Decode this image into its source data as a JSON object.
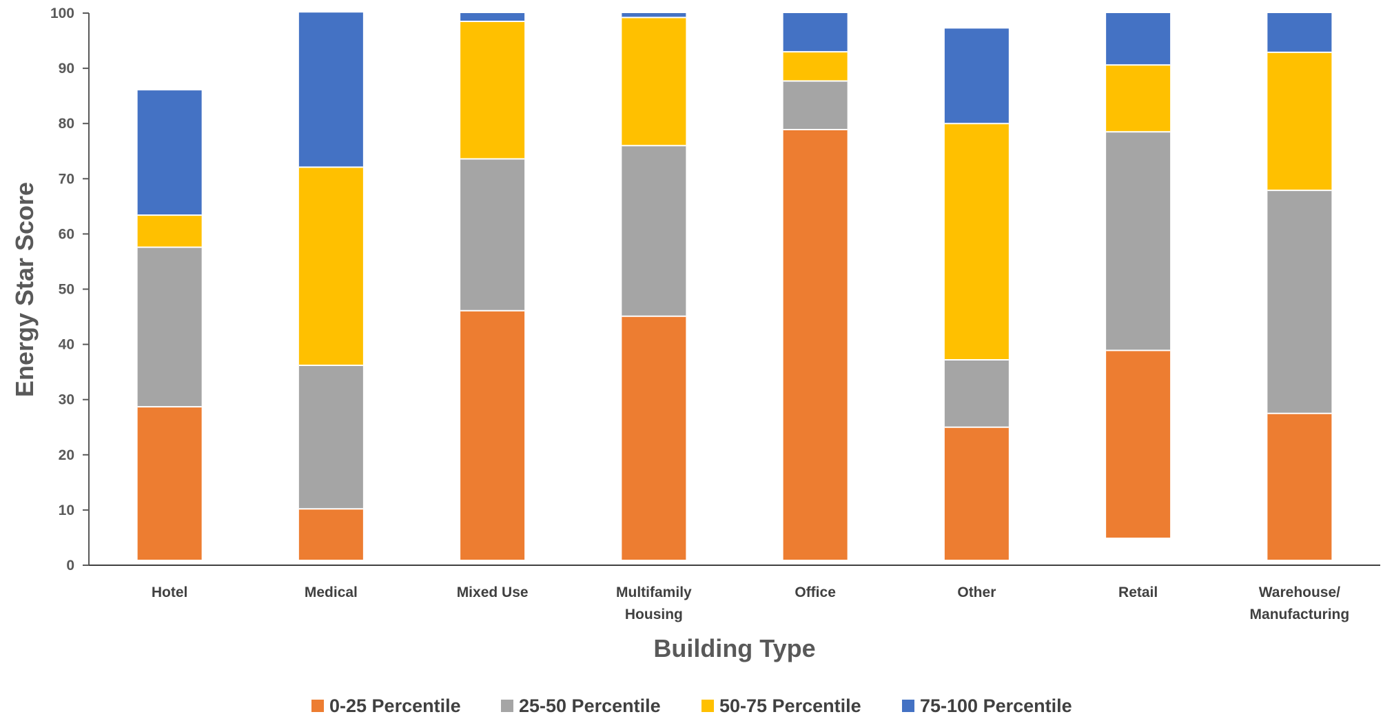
{
  "chart_data": {
    "type": "bar",
    "stacked": true,
    "floating": true,
    "title": "",
    "xlabel": "Building Type",
    "ylabel": "Energy Star Score",
    "ylim": [
      0,
      100
    ],
    "yticks": [
      "0",
      "10",
      "20",
      "30",
      "40",
      "50",
      "60",
      "70",
      "80",
      "90",
      "100"
    ],
    "categories": [
      [
        "Hotel"
      ],
      [
        "Medical"
      ],
      [
        "Mixed Use"
      ],
      [
        "Multifamily",
        "Housing"
      ],
      [
        "Office"
      ],
      [
        "Other"
      ],
      [
        "Retail"
      ],
      [
        "Warehouse/",
        "Manufacturing"
      ]
    ],
    "base": [
      1,
      1,
      1,
      1,
      1,
      1,
      5,
      1
    ],
    "series": [
      {
        "name": "0-25 Percentile",
        "color": "#ED7D31",
        "values": [
          27.7,
          9.2,
          45.1,
          44.1,
          77.9,
          24.0,
          33.9,
          26.5
        ]
      },
      {
        "name": "25-50 Percentile",
        "color": "#A5A5A5",
        "values": [
          28.9,
          26.0,
          27.5,
          30.9,
          8.8,
          12.2,
          39.6,
          40.4
        ]
      },
      {
        "name": "50-75 Percentile",
        "color": "#FFC000",
        "values": [
          5.8,
          35.9,
          24.9,
          23.2,
          5.3,
          42.8,
          12.1,
          25.0
        ]
      },
      {
        "name": "75-100 Percentile",
        "color": "#4472C4",
        "values": [
          22.6,
          28.0,
          1.5,
          0.8,
          7.0,
          17.2,
          9.4,
          7.1
        ]
      }
    ],
    "legend_position": "bottom",
    "grid": false
  }
}
